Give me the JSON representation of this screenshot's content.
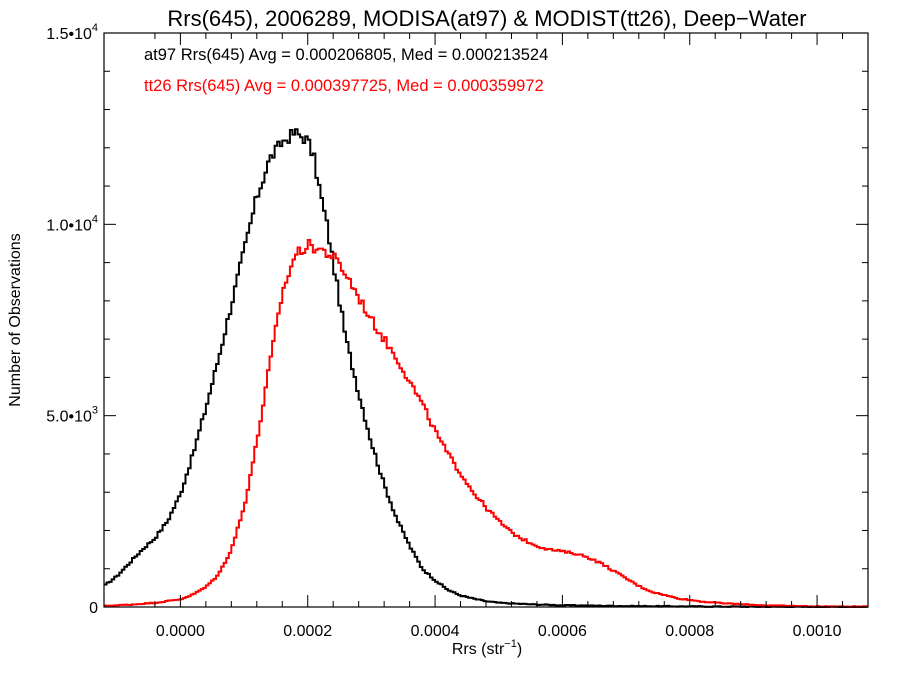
{
  "chart_data": {
    "type": "histogram-step",
    "title": "Rrs(645), 2006289, MODISA(at97) & MODIST(tt26), Deep−Water",
    "xlabel": "Rrs (str",
    "xlabel_sup": "−1",
    "xlabel_end": ")",
    "ylabel": "Number of Observations",
    "xlim": [
      -0.00012,
      0.00108
    ],
    "ylim": [
      0,
      15000
    ],
    "x_ticks": [
      {
        "value": 0.0,
        "label": "0.0000"
      },
      {
        "value": 0.0002,
        "label": "0.0002"
      },
      {
        "value": 0.0004,
        "label": "0.0004"
      },
      {
        "value": 0.0006,
        "label": "0.0006"
      },
      {
        "value": 0.0008,
        "label": "0.0008"
      },
      {
        "value": 0.001,
        "label": "0.0010"
      }
    ],
    "y_ticks": [
      {
        "value": 0,
        "base": "0",
        "sup": ""
      },
      {
        "value": 5000,
        "base": "5.0•10",
        "sup": "3"
      },
      {
        "value": 10000,
        "base": "1.0•10",
        "sup": "4"
      },
      {
        "value": 15000,
        "base": "1.5•10",
        "sup": "4"
      }
    ],
    "annotations": [
      {
        "text": "at97 Rrs(645) Avg = 0.000206805, Med = 0.000213524",
        "color": "#000000"
      },
      {
        "text": "tt26 Rrs(645) Avg = 0.000397725, Med = 0.000359972",
        "color": "#ff0000"
      }
    ],
    "series": [
      {
        "color": "#000000",
        "points": [
          [
            -0.00012,
            550
          ],
          [
            -0.0001,
            800
          ],
          [
            -8e-05,
            1150
          ],
          [
            -6e-05,
            1500
          ],
          [
            -4e-05,
            1800
          ],
          [
            -2e-05,
            2250
          ],
          [
            0.0,
            2950
          ],
          [
            2e-05,
            4000
          ],
          [
            4e-05,
            5200
          ],
          [
            6e-05,
            6500
          ],
          [
            8e-05,
            7900
          ],
          [
            0.0001,
            9300
          ],
          [
            0.00012,
            10700
          ],
          [
            0.00014,
            11700
          ],
          [
            0.00016,
            12150
          ],
          [
            0.00018,
            12400
          ],
          [
            0.0002,
            12200
          ],
          [
            0.00021,
            11700
          ],
          [
            0.00022,
            10800
          ],
          [
            0.00023,
            10000
          ],
          [
            0.00024,
            9000
          ],
          [
            0.00025,
            8000
          ],
          [
            0.00026,
            7000
          ],
          [
            0.00028,
            5600
          ],
          [
            0.0003,
            4300
          ],
          [
            0.00032,
            3200
          ],
          [
            0.00034,
            2300
          ],
          [
            0.00036,
            1600
          ],
          [
            0.00038,
            1000
          ],
          [
            0.0004,
            700
          ],
          [
            0.00042,
            450
          ],
          [
            0.00044,
            300
          ],
          [
            0.00046,
            220
          ],
          [
            0.00048,
            150
          ],
          [
            0.0005,
            110
          ],
          [
            0.00055,
            70
          ],
          [
            0.0006,
            45
          ],
          [
            0.0007,
            25
          ],
          [
            0.0008,
            15
          ],
          [
            0.0009,
            8
          ],
          [
            0.001,
            5
          ],
          [
            0.00108,
            3
          ]
        ]
      },
      {
        "color": "#ff0000",
        "points": [
          [
            -0.00012,
            30
          ],
          [
            -8e-05,
            60
          ],
          [
            -4e-05,
            110
          ],
          [
            0.0,
            200
          ],
          [
            2e-05,
            330
          ],
          [
            4e-05,
            520
          ],
          [
            6e-05,
            850
          ],
          [
            8e-05,
            1500
          ],
          [
            0.0001,
            2600
          ],
          [
            0.00012,
            4300
          ],
          [
            0.00014,
            6300
          ],
          [
            0.00016,
            8200
          ],
          [
            0.00018,
            9200
          ],
          [
            0.0002,
            9450
          ],
          [
            0.00022,
            9350
          ],
          [
            0.00024,
            9150
          ],
          [
            0.00026,
            8700
          ],
          [
            0.00028,
            8100
          ],
          [
            0.0003,
            7500
          ],
          [
            0.00032,
            7000
          ],
          [
            0.00034,
            6500
          ],
          [
            0.00036,
            5900
          ],
          [
            0.00038,
            5300
          ],
          [
            0.0004,
            4600
          ],
          [
            0.00042,
            4000
          ],
          [
            0.00044,
            3500
          ],
          [
            0.00046,
            3000
          ],
          [
            0.00048,
            2600
          ],
          [
            0.0005,
            2250
          ],
          [
            0.00052,
            1950
          ],
          [
            0.00054,
            1750
          ],
          [
            0.00056,
            1600
          ],
          [
            0.00058,
            1500
          ],
          [
            0.0006,
            1450
          ],
          [
            0.00062,
            1400
          ],
          [
            0.00064,
            1300
          ],
          [
            0.00066,
            1150
          ],
          [
            0.00068,
            950
          ],
          [
            0.0007,
            750
          ],
          [
            0.00072,
            550
          ],
          [
            0.00074,
            400
          ],
          [
            0.00078,
            230
          ],
          [
            0.00082,
            140
          ],
          [
            0.00086,
            90
          ],
          [
            0.0009,
            55
          ],
          [
            0.00095,
            30
          ],
          [
            0.001,
            15
          ],
          [
            0.00108,
            8
          ]
        ]
      }
    ]
  }
}
